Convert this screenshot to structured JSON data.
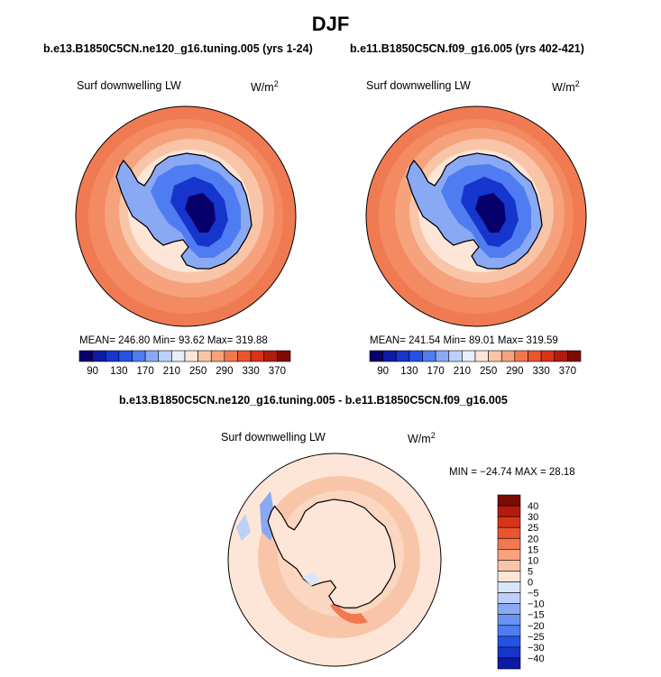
{
  "page": {
    "title": "DJF",
    "diff_title": "b.e13.B1850C5CN.ne120_g16.tuning.005 - b.e11.B1850C5CN.f09_g16.005"
  },
  "panels": [
    {
      "case_title": "b.e13.B1850C5CN.ne120_g16.tuning.005 (yrs 1-24)",
      "variable": "Surf downwelling LW",
      "units": "W/m",
      "units_sup": "2",
      "stats": "MEAN= 246.80   Min=   93.62   Max= 319.88"
    },
    {
      "case_title": "b.e11.B1850C5CN.f09_g16.005 (yrs 402-421)",
      "variable": "Surf downwelling LW",
      "units": "W/m",
      "units_sup": "2",
      "stats": "MEAN= 241.54   Min=   89.01   Max= 319.59"
    }
  ],
  "diff_panel": {
    "variable": "Surf downwelling LW",
    "units": "W/m",
    "units_sup": "2",
    "stats": "MIN = −24.74  MAX =  28.18"
  },
  "colorbar_abs": {
    "ticks": [
      "90",
      "130",
      "170",
      "210",
      "250",
      "290",
      "330",
      "370"
    ],
    "colors": [
      "#08006a",
      "#0c1aa6",
      "#1535cc",
      "#2552e6",
      "#4f7cf0",
      "#8aa9f5",
      "#bcd0fa",
      "#e8eefb",
      "#fde6d8",
      "#f9c5a8",
      "#f6a27c",
      "#f2794f",
      "#ec5430",
      "#db3318",
      "#b21c0e",
      "#7d0b05"
    ]
  },
  "colorbar_diff": {
    "labels": [
      "40",
      "30",
      "25",
      "20",
      "15",
      "10",
      "5",
      "0",
      "−5",
      "−10",
      "−15",
      "−20",
      "−25",
      "−30",
      "−40"
    ],
    "colors": [
      "#7d0b05",
      "#b21c0e",
      "#db3318",
      "#ec5430",
      "#f2794f",
      "#f6a27c",
      "#f9c5a8",
      "#fde6d8",
      "#d9e6fa",
      "#bcd0fa",
      "#8aa9f5",
      "#6a92f2",
      "#4f7cf0",
      "#2552e6",
      "#1535cc",
      "#0c1aa6"
    ]
  },
  "chart_data": [
    {
      "type": "heatmap",
      "title": "b.e13.B1850C5CN.ne120_g16.tuning.005 (yrs 1-24)",
      "variable": "Surf downwelling LW",
      "units": "W/m2",
      "season": "DJF",
      "projection": "south polar stereographic",
      "mean": 246.8,
      "min": 93.62,
      "max": 319.88,
      "colorbar_ticks": [
        90,
        130,
        170,
        210,
        250,
        290,
        330,
        370
      ],
      "colorbar_range": [
        70,
        390
      ]
    },
    {
      "type": "heatmap",
      "title": "b.e11.B1850C5CN.f09_g16.005 (yrs 402-421)",
      "variable": "Surf downwelling LW",
      "units": "W/m2",
      "season": "DJF",
      "projection": "south polar stereographic",
      "mean": 241.54,
      "min": 89.01,
      "max": 319.59,
      "colorbar_ticks": [
        90,
        130,
        170,
        210,
        250,
        290,
        330,
        370
      ],
      "colorbar_range": [
        70,
        390
      ]
    },
    {
      "type": "heatmap",
      "title": "b.e13.B1850C5CN.ne120_g16.tuning.005 - b.e11.B1850C5CN.f09_g16.005",
      "variable": "Surf downwelling LW",
      "units": "W/m2",
      "season": "DJF",
      "projection": "south polar stereographic",
      "min": -24.74,
      "max": 28.18,
      "colorbar_levels": [
        -40,
        -30,
        -25,
        -20,
        -15,
        -10,
        -5,
        0,
        5,
        10,
        15,
        20,
        25,
        30,
        40
      ]
    }
  ]
}
